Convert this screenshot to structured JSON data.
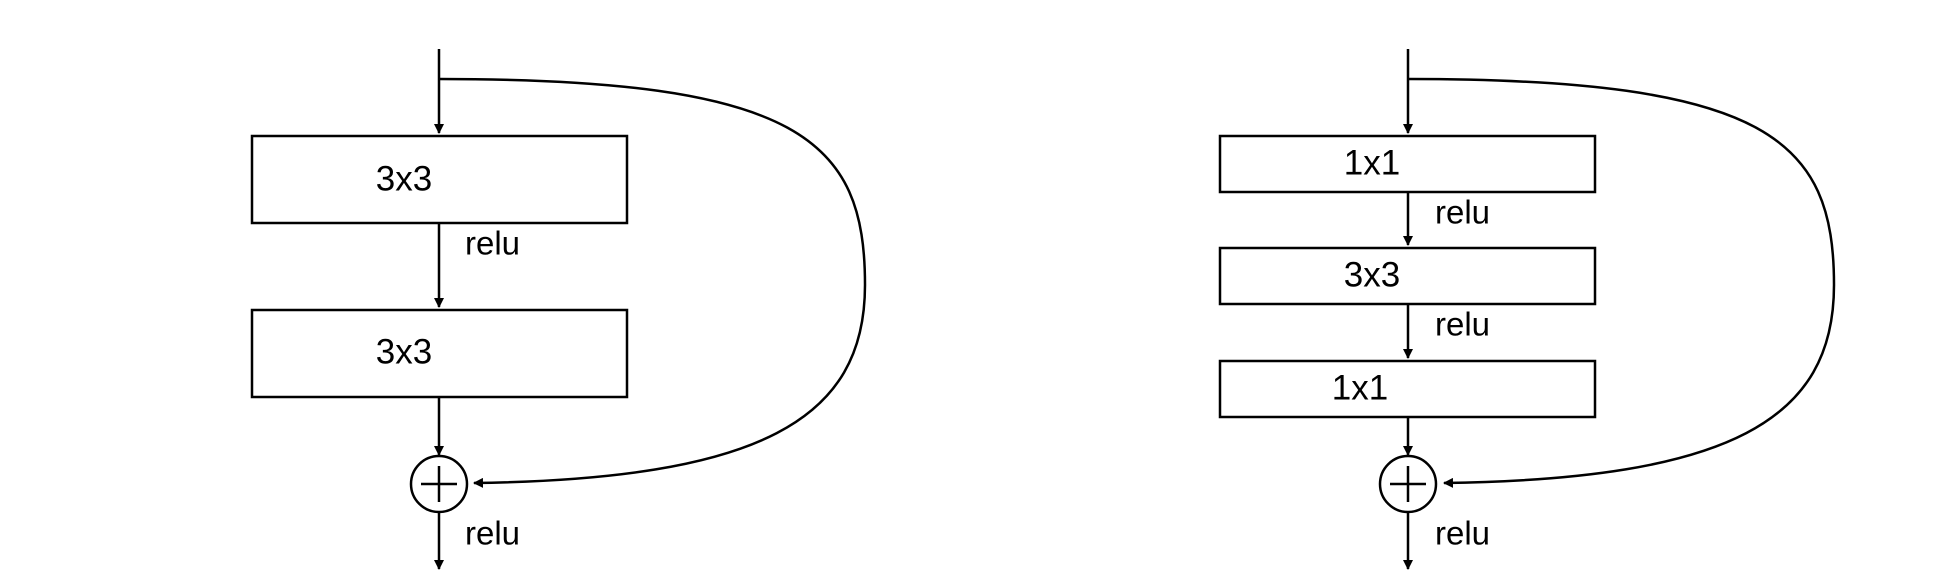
{
  "left_block": {
    "layers": [
      {
        "label": "3x3",
        "color": "#000000"
      },
      {
        "label": "3x3",
        "color": "#000000"
      }
    ],
    "relu_labels": [
      "relu",
      "relu"
    ]
  },
  "right_block": {
    "layers": [
      {
        "label": "1x1",
        "color": "#c00000"
      },
      {
        "label": "3x3",
        "color": "#000000"
      },
      {
        "label": "1x1",
        "color": "#c00000"
      }
    ],
    "relu_labels": [
      "relu",
      "relu",
      "relu"
    ]
  },
  "icons": {
    "add": "circle-plus-icon",
    "arrow": "arrow-head-icon"
  },
  "colors": {
    "stroke": "#000000",
    "highlight": "#c00000",
    "background": "#ffffff"
  }
}
